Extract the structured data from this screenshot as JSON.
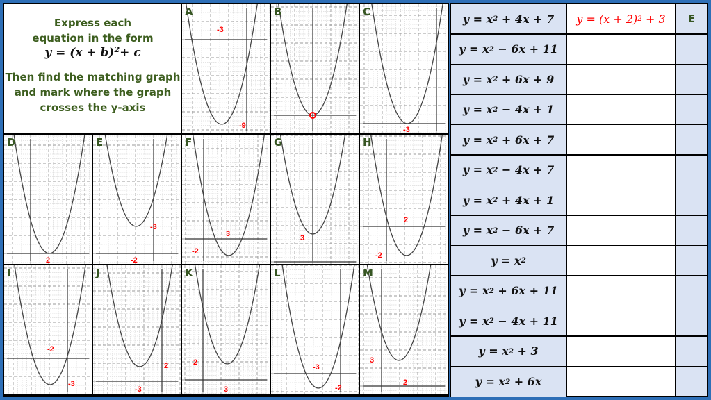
{
  "instructions": {
    "line1": "Express each",
    "line2": "equation in the form",
    "form": {
      "prefix": "y = (x + b)",
      "exp": "2",
      "suffix": "+ c"
    },
    "line3": "Then find the matching graph",
    "line4": "and mark where the graph",
    "line5": "crosses the y-axis"
  },
  "graphs": [
    {
      "letter": "A",
      "marks": [
        "-3",
        "-9"
      ]
    },
    {
      "letter": "B",
      "marks": []
    },
    {
      "letter": "C",
      "marks": [
        "-3"
      ]
    },
    {
      "letter": "D",
      "marks": [
        "2"
      ]
    },
    {
      "letter": "E",
      "marks": [
        "-3",
        "-2"
      ]
    },
    {
      "letter": "F",
      "marks": [
        "3",
        "-2"
      ]
    },
    {
      "letter": "G",
      "marks": [
        "3"
      ]
    },
    {
      "letter": "H",
      "marks": [
        "2",
        "-2"
      ]
    },
    {
      "letter": "I",
      "marks": [
        "-2",
        "-3"
      ]
    },
    {
      "letter": "J",
      "marks": [
        "2",
        "-3"
      ]
    },
    {
      "letter": "K",
      "marks": [
        "2",
        "3"
      ]
    },
    {
      "letter": "L",
      "marks": [
        "-3",
        "-2"
      ]
    },
    {
      "letter": "M",
      "marks": [
        "3",
        "2"
      ]
    }
  ],
  "annotation_color": "#ff0000",
  "table": {
    "rows": [
      {
        "eq": {
          "prefix": "y = x",
          "exp": "2",
          "suffix": " + 4x + 7"
        },
        "answer": {
          "prefix": "y = (x + 2)",
          "exp": "2",
          "suffix": " + 3"
        },
        "match": "E"
      },
      {
        "eq": {
          "prefix": "y = x",
          "exp": "2",
          "suffix": " − 6x + 11"
        },
        "answer": null,
        "match": ""
      },
      {
        "eq": {
          "prefix": "y = x",
          "exp": "2",
          "suffix": " + 6x + 9"
        },
        "answer": null,
        "match": ""
      },
      {
        "eq": {
          "prefix": "y = x",
          "exp": "2",
          "suffix": " − 4x + 1"
        },
        "answer": null,
        "match": ""
      },
      {
        "eq": {
          "prefix": "y = x",
          "exp": "2",
          "suffix": " + 6x + 7"
        },
        "answer": null,
        "match": ""
      },
      {
        "eq": {
          "prefix": "y = x",
          "exp": "2",
          "suffix": " − 4x + 7"
        },
        "answer": null,
        "match": ""
      },
      {
        "eq": {
          "prefix": "y = x",
          "exp": "2",
          "suffix": " + 4x + 1"
        },
        "answer": null,
        "match": ""
      },
      {
        "eq": {
          "prefix": "y = x",
          "exp": "2",
          "suffix": " − 6x + 7"
        },
        "answer": null,
        "match": ""
      },
      {
        "eq": {
          "prefix": "y = x",
          "exp": "2",
          "suffix": ""
        },
        "answer": null,
        "match": ""
      },
      {
        "eq": {
          "prefix": "y = x",
          "exp": "2",
          "suffix": " + 6x + 11"
        },
        "answer": null,
        "match": ""
      },
      {
        "eq": {
          "prefix": "y = x",
          "exp": "2",
          "suffix": " − 4x + 11"
        },
        "answer": null,
        "match": ""
      },
      {
        "eq": {
          "prefix": "y = x",
          "exp": "2",
          "suffix": " + 3"
        },
        "answer": null,
        "match": ""
      },
      {
        "eq": {
          "prefix": "y = x",
          "exp": "2",
          "suffix": " + 6x"
        },
        "answer": null,
        "match": ""
      }
    ]
  }
}
